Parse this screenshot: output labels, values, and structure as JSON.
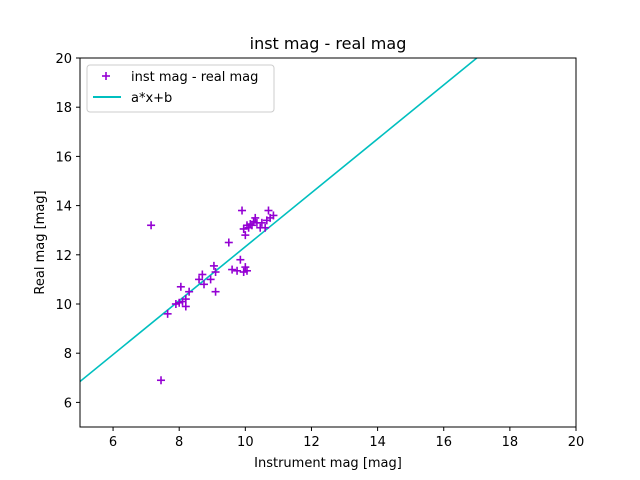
{
  "chart_data": {
    "type": "scatter",
    "title": "inst mag - real mag",
    "xlabel": "Instrument mag [mag]",
    "ylabel": "Real mag [mag]",
    "xlim": [
      5,
      20
    ],
    "ylim": [
      5,
      20
    ],
    "xticks": [
      6,
      8,
      10,
      12,
      14,
      16,
      18,
      20
    ],
    "yticks": [
      6,
      8,
      10,
      12,
      14,
      16,
      18,
      20
    ],
    "grid": false,
    "legend_position": "top-left",
    "series": [
      {
        "name": "inst mag - real mag",
        "kind": "scatter",
        "marker": "+",
        "color": "#9400d3",
        "points": [
          [
            7.15,
            13.2
          ],
          [
            7.45,
            6.9
          ],
          [
            7.65,
            9.6
          ],
          [
            7.9,
            10.0
          ],
          [
            8.0,
            10.05
          ],
          [
            8.05,
            10.7
          ],
          [
            8.1,
            10.1
          ],
          [
            8.2,
            9.9
          ],
          [
            8.2,
            10.2
          ],
          [
            8.3,
            10.5
          ],
          [
            8.6,
            11.0
          ],
          [
            8.7,
            11.2
          ],
          [
            8.75,
            10.8
          ],
          [
            8.95,
            11.0
          ],
          [
            9.05,
            11.55
          ],
          [
            9.1,
            11.3
          ],
          [
            9.1,
            10.5
          ],
          [
            9.5,
            12.5
          ],
          [
            9.6,
            11.4
          ],
          [
            9.75,
            11.35
          ],
          [
            9.85,
            11.8
          ],
          [
            9.9,
            13.8
          ],
          [
            9.95,
            13.05
          ],
          [
            9.95,
            11.3
          ],
          [
            10.0,
            12.8
          ],
          [
            10.0,
            11.5
          ],
          [
            10.05,
            11.35
          ],
          [
            10.05,
            13.2
          ],
          [
            10.1,
            13.1
          ],
          [
            10.15,
            13.25
          ],
          [
            10.2,
            13.2
          ],
          [
            10.25,
            13.35
          ],
          [
            10.3,
            13.5
          ],
          [
            10.35,
            13.3
          ],
          [
            10.45,
            13.1
          ],
          [
            10.5,
            13.3
          ],
          [
            10.6,
            13.1
          ],
          [
            10.65,
            13.4
          ],
          [
            10.7,
            13.8
          ],
          [
            10.75,
            13.5
          ],
          [
            10.85,
            13.6
          ]
        ]
      },
      {
        "name": "a*x+b",
        "kind": "line",
        "color": "#00bfbf",
        "points": [
          [
            5,
            6.85
          ],
          [
            17.0,
            20
          ]
        ]
      }
    ]
  }
}
